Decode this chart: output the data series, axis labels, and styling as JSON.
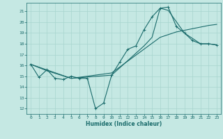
{
  "xlabel": "Humidex (Indice chaleur)",
  "xlim": [
    -0.5,
    23.5
  ],
  "ylim": [
    11.5,
    21.8
  ],
  "yticks": [
    12,
    13,
    14,
    15,
    16,
    17,
    18,
    19,
    20,
    21
  ],
  "xticks": [
    0,
    1,
    2,
    3,
    4,
    5,
    6,
    7,
    8,
    9,
    10,
    11,
    12,
    13,
    14,
    15,
    16,
    17,
    18,
    19,
    20,
    21,
    22,
    23
  ],
  "bg_color": "#c5e8e3",
  "line_color": "#1a6b6b",
  "grid_color": "#a8d5ce",
  "line1_x": [
    0,
    1,
    2,
    3,
    4,
    5,
    6,
    7,
    8,
    9,
    10,
    11,
    12,
    13,
    14,
    15,
    16,
    17,
    18,
    19,
    20,
    21,
    22,
    23
  ],
  "line1_y": [
    16.1,
    14.9,
    15.6,
    14.8,
    14.7,
    15.0,
    14.8,
    14.8,
    12.0,
    12.5,
    15.1,
    16.3,
    17.5,
    17.8,
    19.3,
    20.5,
    21.3,
    21.4,
    19.6,
    19.0,
    18.3,
    18.0,
    18.0,
    17.9
  ],
  "line2_x": [
    0,
    2,
    5,
    10,
    14,
    16,
    18,
    20,
    22,
    23
  ],
  "line2_y": [
    16.1,
    15.5,
    14.8,
    15.3,
    17.5,
    18.6,
    19.1,
    19.4,
    19.7,
    19.8
  ],
  "line3_x": [
    0,
    5,
    10,
    14,
    15,
    16,
    17,
    19,
    21,
    22,
    23
  ],
  "line3_y": [
    16.1,
    14.8,
    15.1,
    17.8,
    18.6,
    21.3,
    21.1,
    19.0,
    18.0,
    18.0,
    17.9
  ]
}
